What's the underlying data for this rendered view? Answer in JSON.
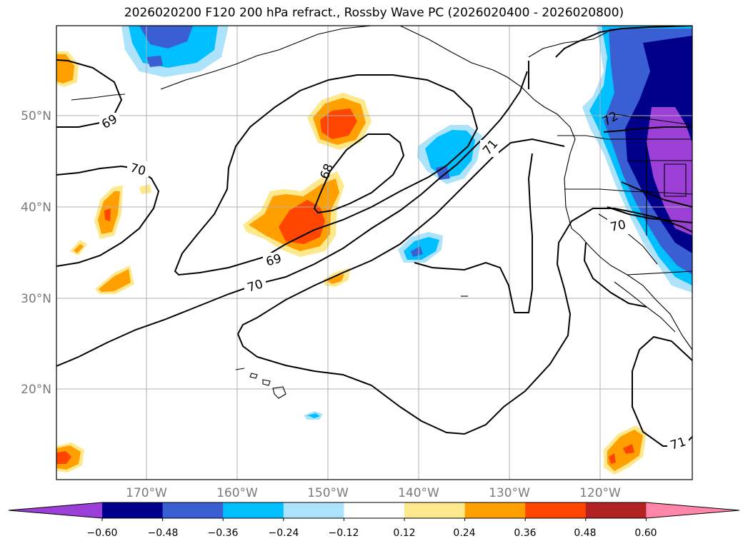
{
  "title": "2026020200 F120 200 hPa refract., Rossby Wave PC (2026020400 - 2026020800)",
  "lat_labels": [
    "50°N",
    "40°N",
    "30°N",
    "20°N"
  ],
  "lon_labels": [
    "170°W",
    "160°W",
    "150°W",
    "140°W",
    "130°W",
    "120°W"
  ],
  "contour_labels": [
    "69",
    "70",
    "68",
    "71",
    "69",
    "70",
    "72",
    "70",
    "71"
  ],
  "colorbar": {
    "ticks": [
      "−0.60",
      "−0.48",
      "−0.36",
      "−0.24",
      "−0.12",
      "0.12",
      "0.24",
      "0.36",
      "0.48",
      "0.60"
    ],
    "colors": [
      "#9b3fd6",
      "#00008b",
      "#3a5fd2",
      "#00bfff",
      "#ade2fb",
      "#ffffff",
      "#fde98c",
      "#ff9f00",
      "#ff4500",
      "#b22222",
      "#ff85a9"
    ]
  },
  "colors": {
    "grid": "#b0b0b0",
    "contour": "#000000",
    "coast": "#000000"
  }
}
